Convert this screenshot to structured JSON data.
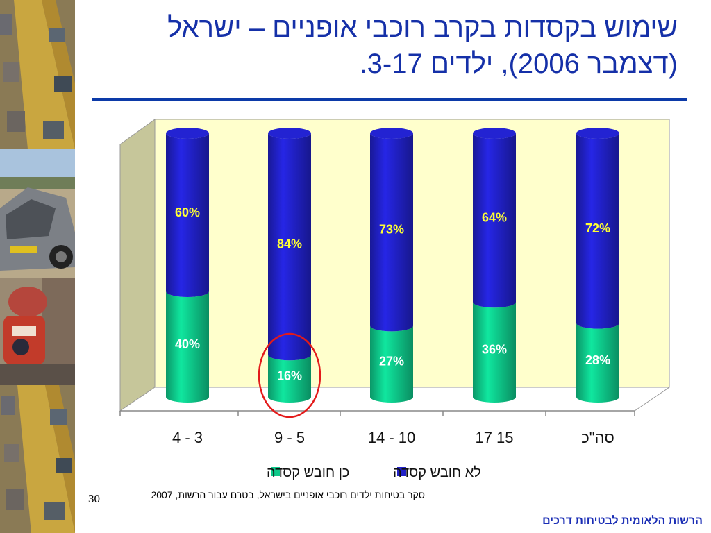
{
  "title": {
    "line1": "שימוש בקסדות בקרב רוכבי אופניים – ישראל",
    "line2": "(דצמבר 2006), ילדים 3-17."
  },
  "source_note": "סקר בטיחות ילדים רוכבי אופניים בישראל, בטרם עבור הרשות, 2007",
  "page_number": "30",
  "organization": "הרשות הלאומית לבטיחות דרכים",
  "photos": [
    "traffic-photo",
    "crashed-car-photo",
    "rescue-worker-photo",
    "traffic-photo"
  ],
  "chart_data": {
    "type": "bar",
    "stacked": true,
    "normalized": true,
    "categories": [
      "4 - 3",
      "9 - 5",
      "14 - 10",
      "17 15",
      "סה\"כ"
    ],
    "series": [
      {
        "name": "כן חובש קסדה",
        "color": "#0ec98a",
        "values": [
          40,
          16,
          27,
          36,
          28
        ],
        "labels": [
          "40%",
          "16%",
          "27%",
          "36%",
          "28%"
        ],
        "label_color": "#ffffff"
      },
      {
        "name": "לא חובש קסדה",
        "color": "#2121c8",
        "values": [
          60,
          84,
          73,
          64,
          72
        ],
        "labels": [
          "60%",
          "84%",
          "73%",
          "64%",
          "72%"
        ],
        "label_color": "#ffff33"
      }
    ],
    "ylim": [
      0,
      100
    ],
    "highlight": {
      "category_index": 1,
      "shape": "circle",
      "color": "#e31a1a"
    },
    "legend": {
      "placement": "bottom"
    },
    "background_color": "#ffffcc",
    "side_wall_color": "#c6c69a"
  }
}
